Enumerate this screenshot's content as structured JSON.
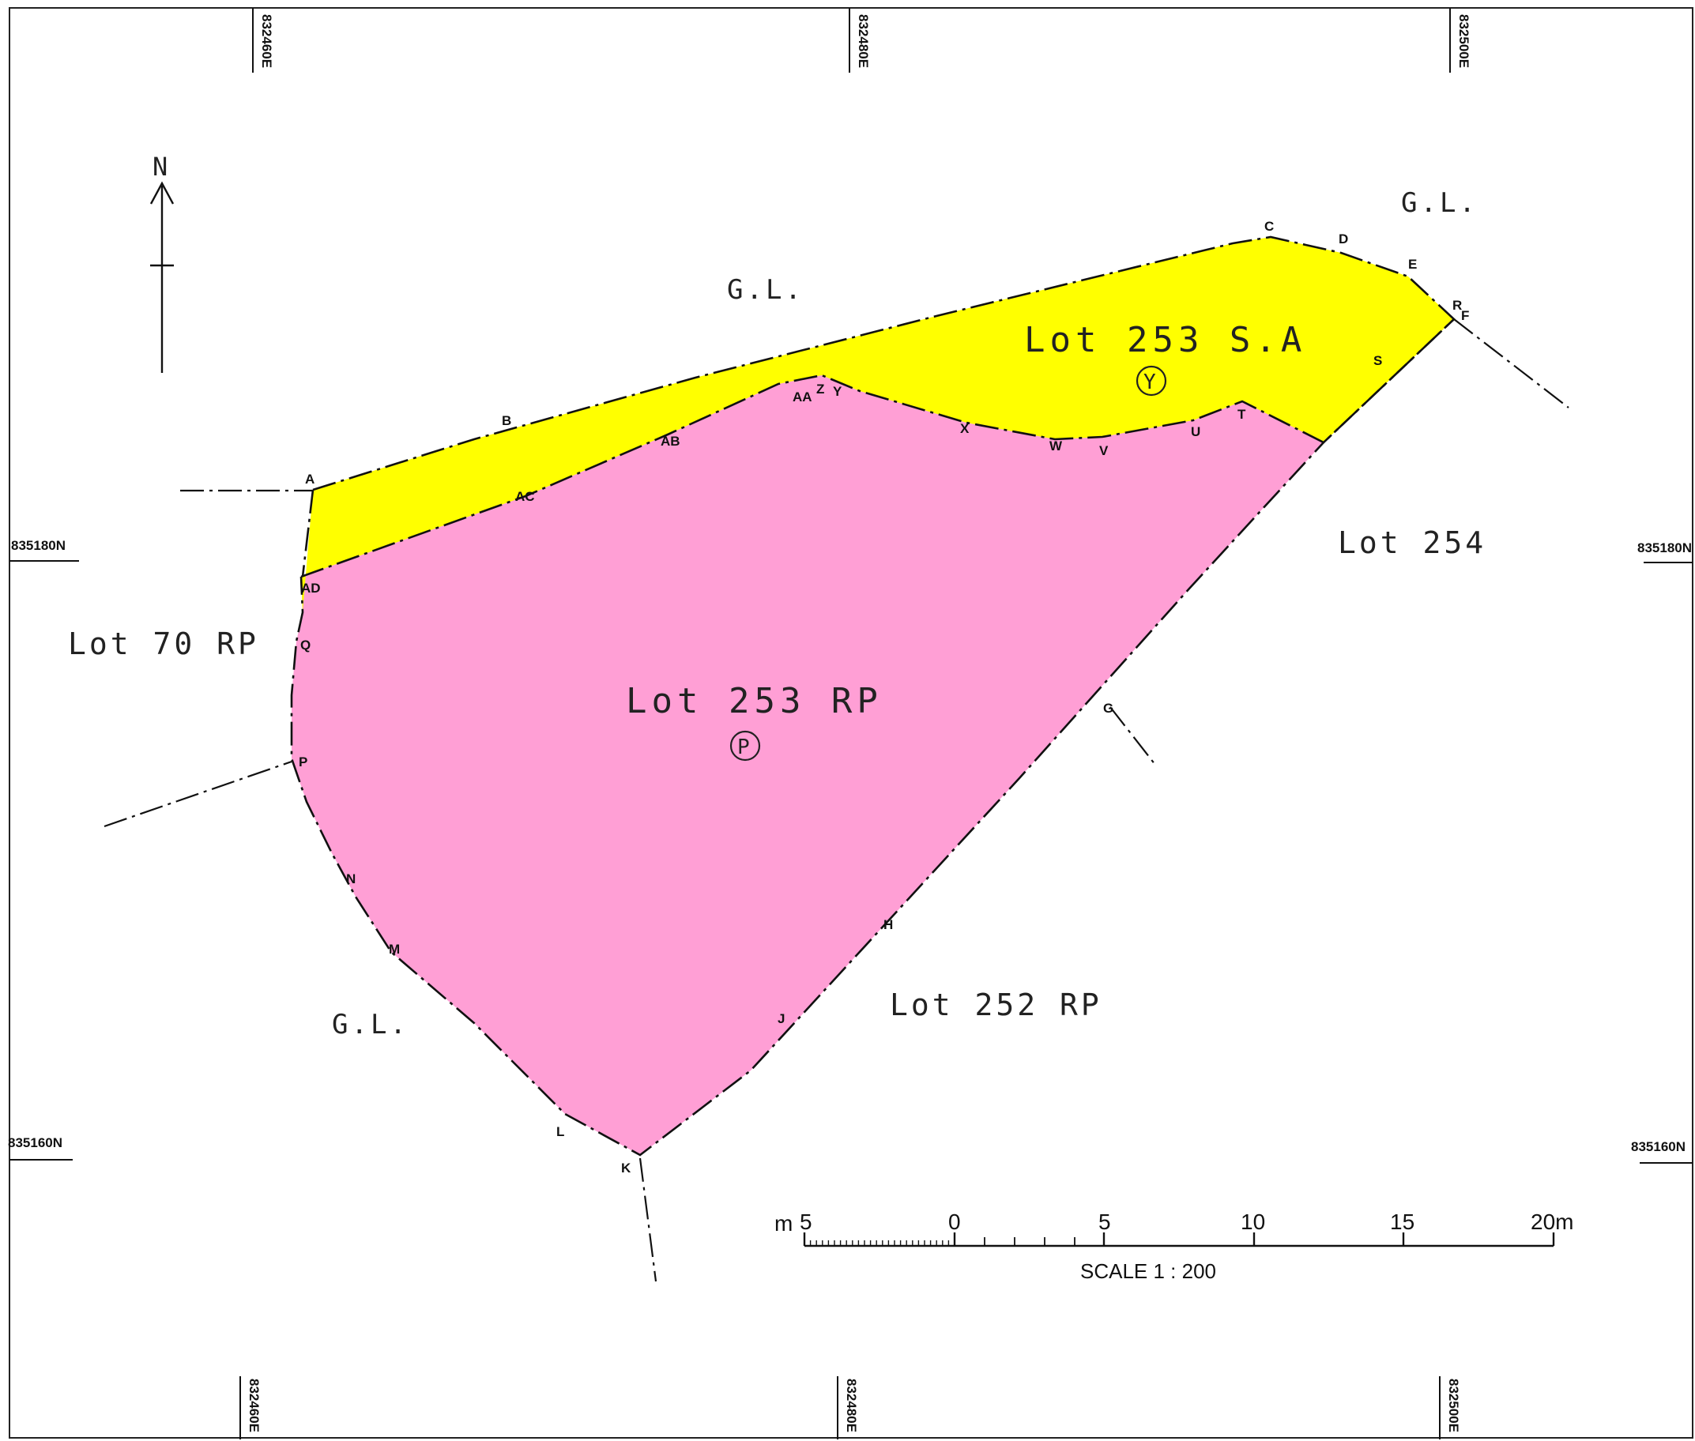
{
  "colors": {
    "remaining_portion": "#ff9fd5",
    "section_a": "#ffff00",
    "line": "#111111"
  },
  "north_label": "N",
  "grid": {
    "easting": [
      "832460E",
      "832480E",
      "832500E"
    ],
    "northing": [
      "835180N",
      "835160N"
    ]
  },
  "areas": {
    "section_a": {
      "name": "Lot 253 S.A",
      "mark": "Y"
    },
    "remaining": {
      "name": "Lot 253 RP",
      "mark": "P"
    }
  },
  "neighbours": {
    "gl_top": "G.L.",
    "gl_top_right": "G.L.",
    "gl_bottom": "G.L.",
    "lot_254": "Lot 254",
    "lot_70": "Lot 70 RP",
    "lot_252": "Lot 252 RP"
  },
  "points": {
    "A": "A",
    "B": "B",
    "C": "C",
    "D": "D",
    "E": "E",
    "F": "F",
    "R": "R",
    "G": "G",
    "H": "H",
    "J": "J",
    "K": "K",
    "L": "L",
    "M": "M",
    "N": "N",
    "P": "P",
    "Q": "Q",
    "S": "S",
    "T": "T",
    "U": "U",
    "V": "V",
    "W": "W",
    "X": "X",
    "Y": "Y",
    "Z": "Z",
    "AA": "AA",
    "AB": "AB",
    "AC": "AC",
    "AD": "AD"
  },
  "scale": {
    "unit_left": "m",
    "ticks": [
      "5",
      "0",
      "5",
      "10",
      "15",
      "20m"
    ],
    "caption": "SCALE  1 : 200"
  }
}
